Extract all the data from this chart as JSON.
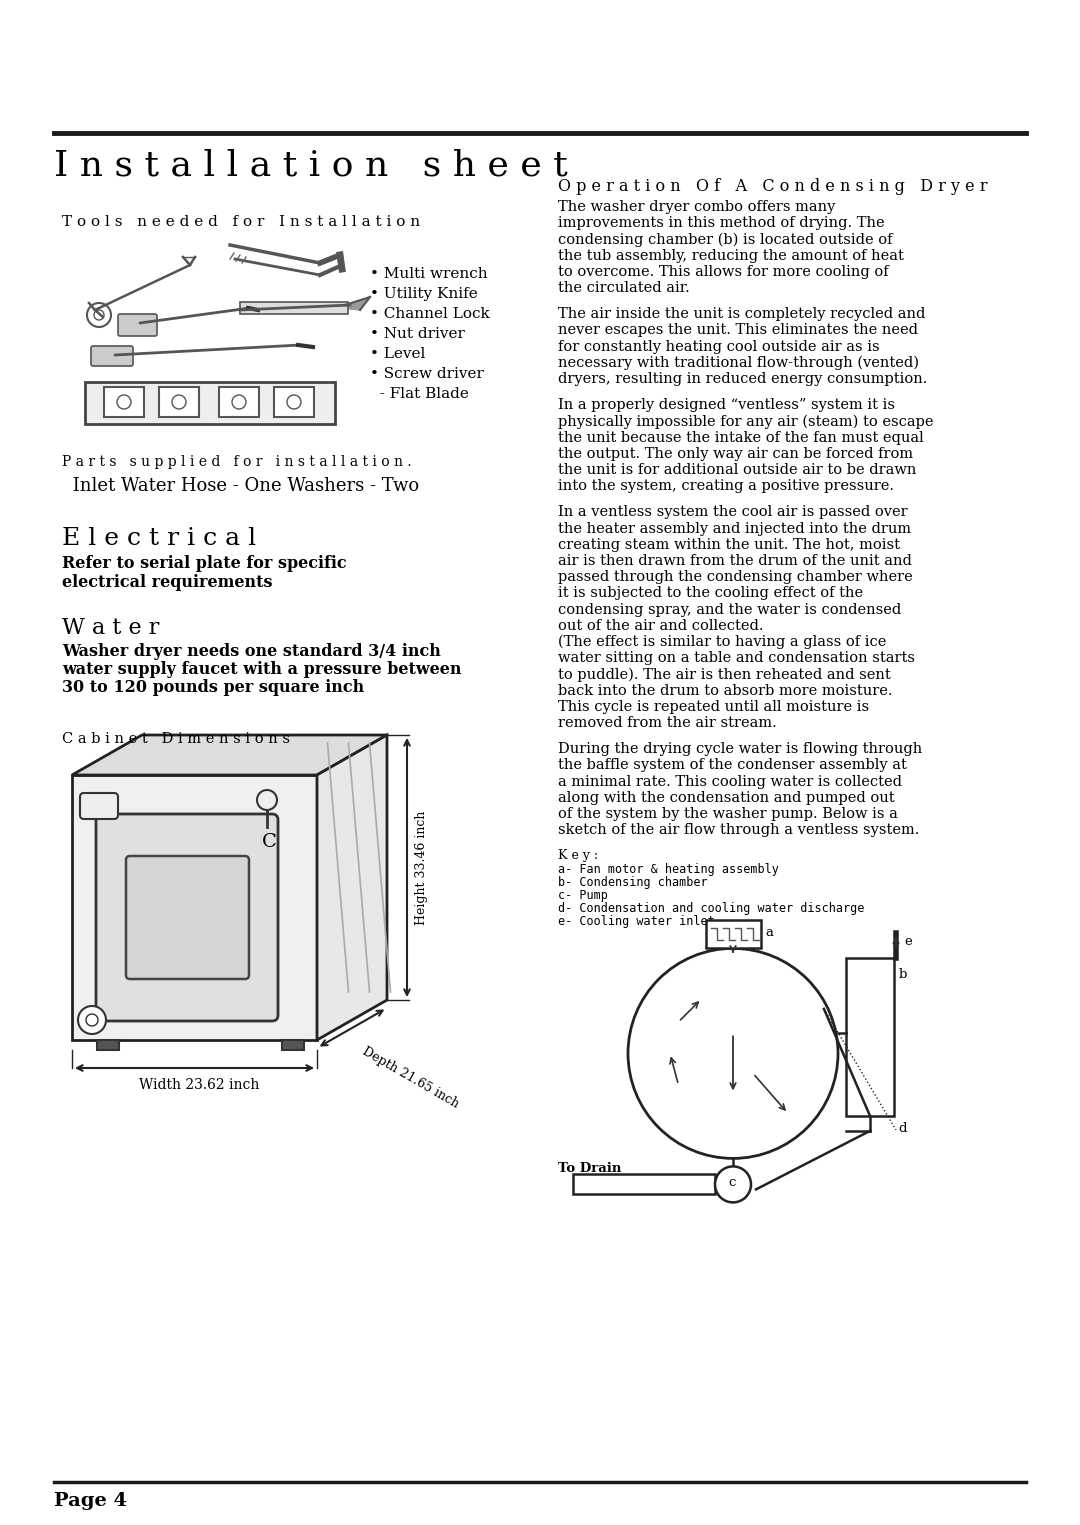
{
  "title": "Installation sheet",
  "page_num": "Page 4",
  "left_col": {
    "tools_header": "Tools needed for Installation",
    "tools_list": [
      "• Multi wrench",
      "• Utility Knife",
      "• Channel Lock",
      "• Nut driver",
      "• Level",
      "• Screw driver",
      "  - Flat Blade"
    ],
    "parts_header": "Parts supplied for installation.",
    "parts_text": " Inlet Water Hose - One Washers - Two",
    "electrical_header": "Electrical",
    "electrical_text": "Refer to serial plate for specific\nelectrical requirements",
    "water_header": "Water",
    "water_text": "Washer dryer needs one standard 3/4 inch\nwater supply faucet with a pressure between\n30 to 120 pounds per square inch",
    "cabinet_header": "Cabinet Dimensions",
    "width_label": "Width 23.62 inch",
    "height_label": "Height 33.46 inch",
    "depth_label": "Depth 21.65 inch"
  },
  "right_col": {
    "op_header": "Operation Of A Condensing Dryer",
    "para1": "The washer dryer combo offers many\nimprovements in this method of drying. The\ncondensing chamber (b) is located outside of\nthe tub assembly, reducing the amount of heat\nto overcome. This allows for more cooling of\nthe circulated air.",
    "para2": "The air inside the unit is completely recycled and\nnever escapes the unit. This eliminates the need\nfor constantly heating cool outside air as is\nnecessary with traditional flow-through (vented)\ndryers, resulting in reduced energy consumption.",
    "para3": "In a properly designed “ventless” system it is\nphysically impossible for any air (steam) to escape\nthe unit because the intake of the fan must equal\nthe output. The only way air can be forced from\nthe unit is for additional outside air to be drawn\ninto the system, creating a positive pressure.",
    "para4": "In a ventless system the cool air is passed over\nthe heater assembly and injected into the drum\ncreating steam within the unit. The hot, moist\nair is then drawn from the drum of the unit and\npassed through the condensing chamber where\nit is subjected to the cooling effect of the\ncondensing spray, and the water is condensed\nout of the air and collected.\n(The effect is similar to having a glass of ice\nwater sitting on a table and condensation starts\nto puddle). The air is then reheated and sent\nback into the drum to absorb more moisture.\nThis cycle is repeated until all moisture is\nremoved from the air stream.",
    "para5": "During the drying cycle water is flowing through\nthe baffle system of the condenser assembly at\na minimal rate. This cooling water is collected\nalong with the condensation and pumped out\nof the system by the washer pump. Below is a\nsketch of the air flow through a ventless system.",
    "key_header": "Key:",
    "key_items": [
      "a- Fan motor & heating assembly",
      "b- Condensing chamber",
      "c- Pump",
      "d- Condensation and cooling water discharge",
      "e- Cooling water inlet"
    ],
    "drain_label": "To Drain"
  },
  "bg_color": "#ffffff",
  "text_color": "#000000",
  "line_color": "#1a1a1a"
}
